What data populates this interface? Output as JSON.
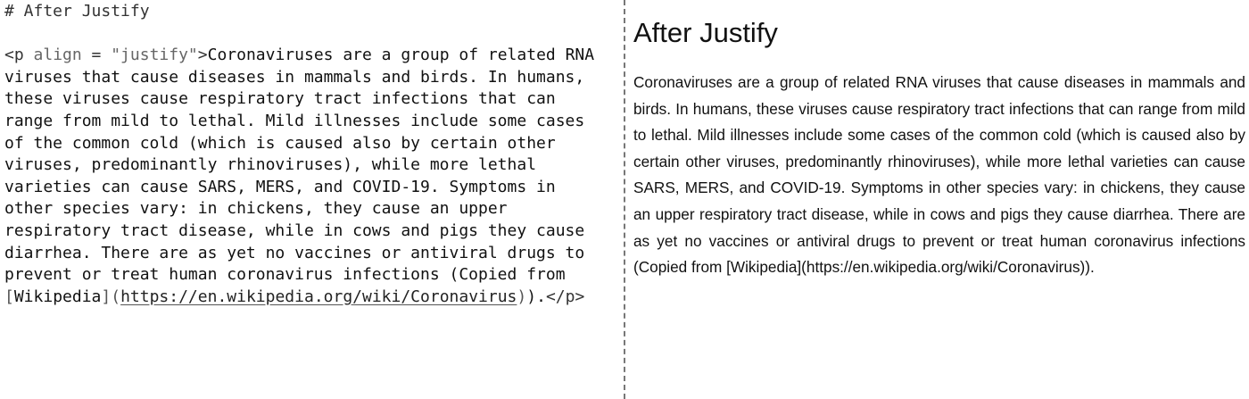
{
  "editor": {
    "comment": "# After Justify",
    "open_tag_start": "<p ",
    "attr_name": "align",
    "attr_eq": " = ",
    "attr_value": "\"justify\"",
    "open_tag_end": ">",
    "lines": [
      "Coronaviruses are a group of related RNA",
      "viruses that cause diseases in mammals and birds. In humans,",
      "these viruses cause respiratory tract infections that can",
      "range from mild to lethal. Mild illnesses include some cases",
      "of the common cold (which is caused also by certain other",
      "viruses, predominantly rhinoviruses), while more lethal",
      "varieties can cause SARS, MERS, and COVID-19. Symptoms in",
      "other species vary: in chickens, they cause an upper",
      "respiratory tract disease, while in cows and pigs they cause",
      "diarrhea. There are as yet no vaccines or antiviral drugs to",
      "prevent or treat human coronavirus infections (Copied from"
    ],
    "link_open": "[",
    "link_text": "Wikipedia",
    "link_close": "]",
    "paren_open": "(",
    "url": "https://en.wikipedia.org/wiki/Coronavirus",
    "paren_close": ")",
    "tail": ").",
    "close_tag": "</p>"
  },
  "preview": {
    "heading": "After Justify",
    "paragraph": "Coronaviruses are a group of related RNA viruses that cause diseases in mammals and birds. In humans, these viruses cause respiratory tract infections that can range from mild to lethal. Mild illnesses include some cases of the common cold (which is caused also by certain other viruses, predominantly rhinoviruses), while more lethal varieties can cause SARS, MERS, and COVID-19. Symptoms in other species vary: in chickens, they cause an upper respiratory tract disease, while in cows and pigs they cause diarrhea. There are as yet no vaccines or antiviral drugs to prevent or treat human coronavirus infections (Copied from [Wikipedia](https://en.wikipedia.org/wiki/Coronavirus))."
  }
}
